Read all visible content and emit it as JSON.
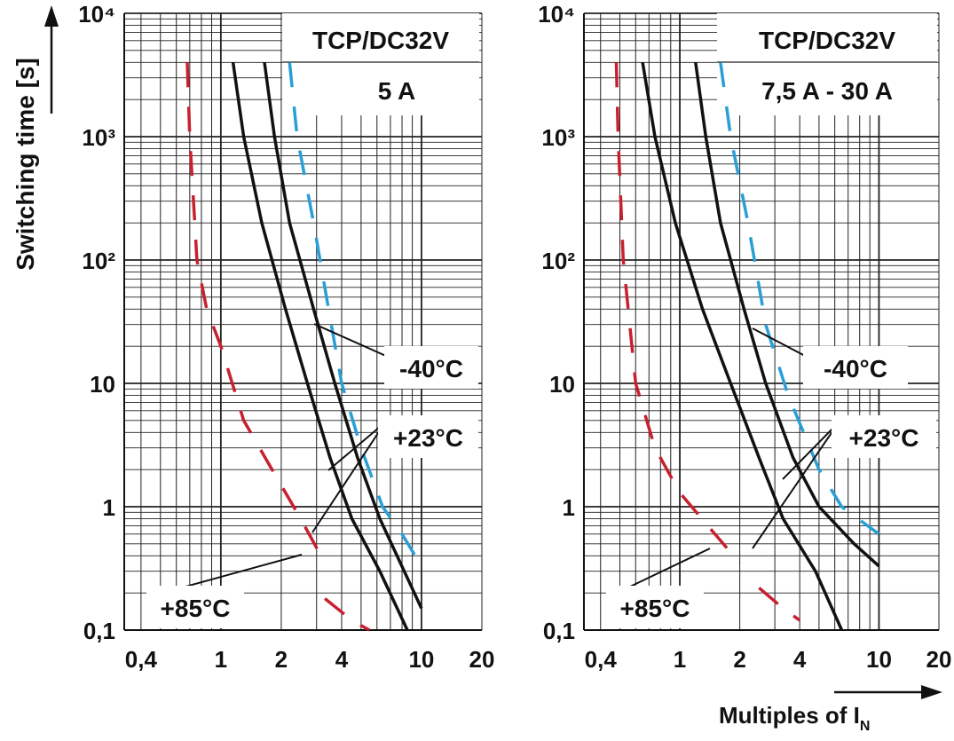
{
  "figure": {
    "ylabel": "Switching time [s]",
    "xlabel_main": "Multiples of I",
    "xlabel_sub": "N"
  },
  "chart_data": [
    {
      "type": "line",
      "title_line1": "TCP/DC32V",
      "title_line2": "5 A",
      "x_scale": "log",
      "y_scale": "log",
      "xlim": [
        0.33,
        20
      ],
      "ylim": [
        0.1,
        10000
      ],
      "x_ticks": [
        0.4,
        1,
        2,
        4,
        10,
        20
      ],
      "x_tick_labels": [
        "0,4",
        "1",
        "2",
        "4",
        "10",
        "20"
      ],
      "y_ticks": [
        0.1,
        1,
        10,
        100,
        1000,
        10000
      ],
      "y_tick_labels": [
        "0,1",
        "1",
        "10",
        "10²",
        "10³",
        "10⁴"
      ],
      "grid": true,
      "colors": {
        "minus40": "#2a9fd6",
        "plus23": "#111111",
        "plus85": "#c8202f"
      },
      "series": [
        {
          "name": "-40°C",
          "style": "dashed",
          "color_key": "minus40",
          "curves": [
            [
              [
                2.2,
                4000
              ],
              [
                2.4,
                1000
              ],
              [
                2.9,
                200
              ],
              [
                3.4,
                45
              ],
              [
                4.0,
                10
              ],
              [
                5.0,
                3
              ],
              [
                6.4,
                1
              ],
              [
                8.0,
                0.6
              ],
              [
                10.0,
                0.33
              ]
            ]
          ]
        },
        {
          "name": "+23°C",
          "style": "solid",
          "color_key": "plus23",
          "curves": [
            [
              [
                1.15,
                4000
              ],
              [
                1.3,
                1000
              ],
              [
                1.6,
                200
              ],
              [
                2.1,
                40
              ],
              [
                2.7,
                10
              ],
              [
                3.5,
                2.5
              ],
              [
                4.5,
                0.8
              ],
              [
                6.2,
                0.3
              ],
              [
                8.5,
                0.1
              ]
            ],
            [
              [
                1.65,
                4000
              ],
              [
                1.85,
                1000
              ],
              [
                2.2,
                200
              ],
              [
                2.9,
                40
              ],
              [
                3.7,
                10
              ],
              [
                4.8,
                2.5
              ],
              [
                6.2,
                0.8
              ],
              [
                8.2,
                0.3
              ],
              [
                10.0,
                0.15
              ]
            ]
          ]
        },
        {
          "name": "+85°C",
          "style": "dashed",
          "color_key": "plus85",
          "curves": [
            [
              [
                0.68,
                4000
              ],
              [
                0.7,
                1000
              ],
              [
                0.76,
                100
              ],
              [
                0.85,
                40
              ],
              [
                1.0,
                20
              ],
              [
                1.3,
                5
              ],
              [
                1.8,
                2
              ],
              [
                2.5,
                0.8
              ],
              [
                3.3,
                0.35
              ]
            ],
            [
              [
                3.3,
                0.18
              ],
              [
                4.5,
                0.12
              ],
              [
                5.5,
                0.1
              ]
            ]
          ]
        }
      ],
      "labels": [
        {
          "text": "-40°C",
          "series": "-40°C"
        },
        {
          "text": "+23°C",
          "series": "+23°C"
        },
        {
          "text": "+85°C",
          "series": "+85°C"
        }
      ]
    },
    {
      "type": "line",
      "title_line1": "TCP/DC32V",
      "title_line2": "7,5 A - 30 A",
      "x_scale": "log",
      "y_scale": "log",
      "xlim": [
        0.33,
        20
      ],
      "ylim": [
        0.1,
        10000
      ],
      "x_ticks": [
        0.4,
        1,
        2,
        4,
        10,
        20
      ],
      "x_tick_labels": [
        "0,4",
        "1",
        "2",
        "4",
        "10",
        "20"
      ],
      "y_ticks": [
        0.1,
        1,
        10,
        100,
        1000,
        10000
      ],
      "y_tick_labels": [
        "0,1",
        "1",
        "10",
        "10²",
        "10³",
        "10⁴"
      ],
      "grid": true,
      "colors": {
        "minus40": "#2a9fd6",
        "plus23": "#111111",
        "plus85": "#c8202f"
      },
      "series": [
        {
          "name": "-40°C",
          "style": "dashed",
          "color_key": "minus40",
          "curves": [
            [
              [
                1.6,
                4000
              ],
              [
                1.8,
                1000
              ],
              [
                2.2,
                200
              ],
              [
                2.7,
                30
              ],
              [
                3.5,
                8
              ],
              [
                5.0,
                2
              ],
              [
                6.5,
                1
              ],
              [
                10.0,
                0.6
              ]
            ]
          ]
        },
        {
          "name": "+23°C",
          "style": "solid",
          "color_key": "plus23",
          "curves": [
            [
              [
                0.65,
                4000
              ],
              [
                0.75,
                1000
              ],
              [
                0.95,
                200
              ],
              [
                1.3,
                40
              ],
              [
                1.8,
                10
              ],
              [
                2.5,
                2.5
              ],
              [
                3.3,
                0.8
              ],
              [
                4.8,
                0.3
              ],
              [
                6.5,
                0.1
              ]
            ],
            [
              [
                1.2,
                4000
              ],
              [
                1.35,
                1000
              ],
              [
                1.6,
                200
              ],
              [
                2.1,
                40
              ],
              [
                2.7,
                10
              ],
              [
                3.7,
                2.5
              ],
              [
                5.0,
                1.0
              ],
              [
                7.5,
                0.5
              ],
              [
                10.0,
                0.33
              ]
            ]
          ]
        },
        {
          "name": "+85°C",
          "style": "dashed",
          "color_key": "plus85",
          "curves": [
            [
              [
                0.48,
                4000
              ],
              [
                0.49,
                1000
              ],
              [
                0.52,
                100
              ],
              [
                0.6,
                10
              ],
              [
                0.75,
                3
              ],
              [
                1.0,
                1.3
              ],
              [
                1.5,
                0.6
              ],
              [
                2.0,
                0.35
              ]
            ],
            [
              [
                2.5,
                0.22
              ],
              [
                3.3,
                0.15
              ],
              [
                4.0,
                0.12
              ]
            ]
          ]
        }
      ],
      "labels": [
        {
          "text": "-40°C",
          "series": "-40°C"
        },
        {
          "text": "+23°C",
          "series": "+23°C"
        },
        {
          "text": "+85°C",
          "series": "+85°C"
        }
      ]
    }
  ]
}
